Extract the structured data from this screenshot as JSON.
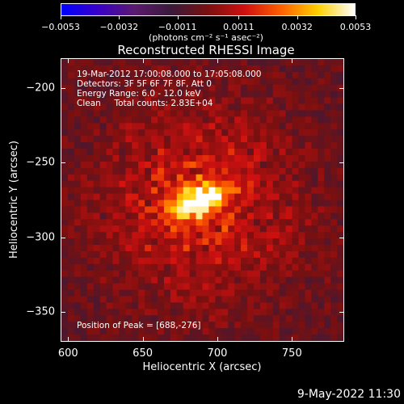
{
  "chart_data": {
    "type": "heatmap",
    "title": "Reconstructed RHESSI Image",
    "xlabel": "Heliocentric X (arcsec)",
    "ylabel": "Heliocentric Y (arcsec)",
    "xlim": [
      595,
      785
    ],
    "ylim": [
      -370,
      -180
    ],
    "x_ticks": [
      "600",
      "650",
      "700",
      "750"
    ],
    "x_tick_values": [
      600,
      650,
      700,
      750
    ],
    "y_ticks": [
      "−200",
      "−250",
      "−300",
      "−350"
    ],
    "y_tick_values": [
      -200,
      -250,
      -300,
      -350
    ],
    "colorbar": {
      "ticks": [
        "−0.0053",
        "−0.0032",
        "−0.0011",
        "0.0011",
        "0.0032",
        "0.0053"
      ],
      "tick_values": [
        -0.0053,
        -0.0032,
        -0.0011,
        0.0011,
        0.0032,
        0.0053
      ],
      "range": [
        -0.0053,
        0.0053
      ],
      "colormap": [
        "#0000ff",
        "#3a00c8",
        "#5a1a6e",
        "#3a1a3a",
        "#7a1010",
        "#d01010",
        "#ff6000",
        "#ffd000",
        "#ffffff"
      ]
    },
    "peak": {
      "x": 688,
      "y": -276,
      "value": 0.0053
    },
    "annotations": {
      "time_range": "19-Mar-2012 17:00:08.000 to 17:05:08.000",
      "detectors": "Detectors: 3F 5F 6F 7F 8F, Att 0",
      "energy": "Energy Range: 6.0 - 12.0 keV",
      "clean": "Clean     Total counts: 2.83E+04",
      "peak_position": "Position of Peak = [688,-276]"
    }
  },
  "colorbar_unit": "(photons cm⁻² s⁻¹ asec⁻²)",
  "footer": "9-May-2022 11:30"
}
